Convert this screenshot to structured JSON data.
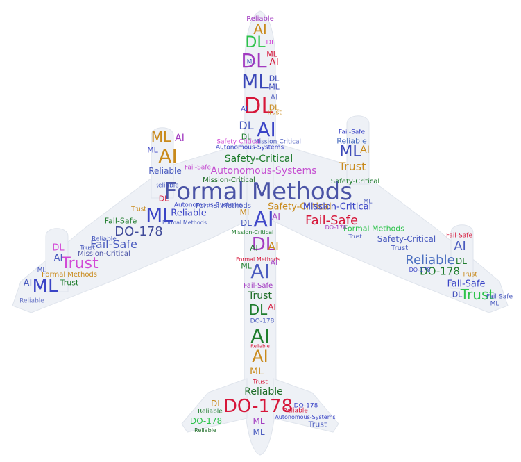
{
  "cloud": {
    "words": [
      {
        "text": "Formal Methods",
        "color": "#4b54a6"
      },
      {
        "text": "AI",
        "color": "#c98a1b"
      },
      {
        "text": "DL",
        "color": "#2cc34a"
      },
      {
        "text": "DL",
        "color": "#a23ac0"
      },
      {
        "text": "ML",
        "color": "#3a47b8"
      },
      {
        "text": "DL",
        "color": "#d6173a"
      },
      {
        "text": "AI",
        "color": "#3a44c6"
      },
      {
        "text": "Safety-Critical",
        "color": "#1e7c2c"
      },
      {
        "text": "Autonomous-Systems",
        "color": "#c54fd1"
      },
      {
        "text": "Mission-Critical",
        "color": "#1e6d27"
      },
      {
        "text": "AI",
        "color": "#3f47c8"
      },
      {
        "text": "AI",
        "color": "#d6173a"
      },
      {
        "text": "AI",
        "color": "#4a5bbf"
      },
      {
        "text": "AI",
        "color": "#1e7c2c"
      },
      {
        "text": "DL",
        "color": "#1e7c2c"
      },
      {
        "text": "AI",
        "color": "#c98a1b"
      },
      {
        "text": "ML",
        "color": "#3a47b8"
      },
      {
        "text": "AI",
        "color": "#c98a1b"
      },
      {
        "text": "ML",
        "color": "#c98a1b"
      },
      {
        "text": "ML",
        "color": "#3a44c6"
      },
      {
        "text": "DO-178",
        "color": "#3f4a99"
      },
      {
        "text": "Fail-Safe",
        "color": "#4a5bbf"
      },
      {
        "text": "Trust",
        "color": "#d249d6"
      },
      {
        "text": "ML",
        "color": "#3a44c6"
      },
      {
        "text": "Reliable",
        "color": "#3a44c6"
      },
      {
        "text": "DO-178",
        "color": "#1e6d27"
      },
      {
        "text": "Fail-Safe",
        "color": "#d6173a"
      },
      {
        "text": "Mission-Critical",
        "color": "#4b54a6"
      },
      {
        "text": "Formal Methods",
        "color": "#2cc34a"
      },
      {
        "text": "Safety-Critical",
        "color": "#4a5bbf"
      },
      {
        "text": "Reliable",
        "color": "#4b6fc0"
      },
      {
        "text": "DO-178",
        "color": "#1e7c2c"
      },
      {
        "text": "Trust",
        "color": "#2cc34a"
      },
      {
        "text": "Fail-Safe",
        "color": "#3a44c6"
      },
      {
        "text": "Trust",
        "color": "#1e7c2c"
      },
      {
        "text": "AI",
        "color": "#4a5bbf"
      },
      {
        "text": "ML",
        "color": "#a23ac0"
      },
      {
        "text": "Trust",
        "color": "#c98a1b"
      },
      {
        "text": "Reliable",
        "color": "#6b78c8"
      },
      {
        "text": "DL",
        "color": "#4a5bbf"
      },
      {
        "text": "DO-178",
        "color": "#d6173a"
      },
      {
        "text": "Reliable",
        "color": "#1e7c2c"
      },
      {
        "text": "DO-178",
        "color": "#2cc34a"
      },
      {
        "text": "DL",
        "color": "#c98a1b"
      },
      {
        "text": "ML",
        "color": "#a23ac0"
      },
      {
        "text": "ML",
        "color": "#4a5bbf"
      },
      {
        "text": "Trust",
        "color": "#4a5bbf"
      },
      {
        "text": "Mission-Critical",
        "color": "#3a44c6"
      },
      {
        "text": "Trust",
        "color": "#c98a1b"
      },
      {
        "text": "Trust",
        "color": "#1e6d27"
      },
      {
        "text": "Formal Methods",
        "color": "#c98a1b"
      },
      {
        "text": "Reliable",
        "color": "#4a5bbf"
      },
      {
        "text": "DL",
        "color": "#3a47b8"
      },
      {
        "text": "AI",
        "color": "#6b78c8"
      },
      {
        "text": "DL",
        "color": "#c98a1b"
      },
      {
        "text": "DL",
        "color": "#d249d6"
      },
      {
        "text": "DL",
        "color": "#a23ac0"
      },
      {
        "text": "AI",
        "color": "#d6173a"
      },
      {
        "text": "AI",
        "color": "#3f47c8"
      },
      {
        "text": "AI",
        "color": "#c98a1b"
      },
      {
        "text": "AI",
        "color": "#a23ac0"
      },
      {
        "text": "ML",
        "color": "#1e7c2c"
      },
      {
        "text": "ML",
        "color": "#c98a1b"
      },
      {
        "text": "Formal Methods",
        "color": "#d6173a"
      },
      {
        "text": "Fail-Safe",
        "color": "#c54fd1"
      },
      {
        "text": "DO-178",
        "color": "#4a5bbf"
      },
      {
        "text": "Mission-Critical",
        "color": "#4a5bbf"
      },
      {
        "text": "Autonomous-Systems",
        "color": "#3a44c6"
      },
      {
        "text": "Safety-Critical",
        "color": "#d249d6"
      },
      {
        "text": "Fail-Safe",
        "color": "#1e7c2c"
      },
      {
        "text": "Reliable",
        "color": "#4a5bbf"
      },
      {
        "text": "DL",
        "color": "#d6173a"
      },
      {
        "text": "ML",
        "color": "#c98a1b"
      },
      {
        "text": "DL",
        "color": "#4a5bbf"
      },
      {
        "text": "DL",
        "color": "#d6173a"
      },
      {
        "text": "AI",
        "color": "#4a5bbf"
      },
      {
        "text": "AI",
        "color": "#d6173a"
      },
      {
        "text": "Trust",
        "color": "#c98a1b"
      },
      {
        "text": "ML",
        "color": "#c98a1b"
      },
      {
        "text": "ML",
        "color": "#4a5bbf"
      },
      {
        "text": "AI",
        "color": "#4a5bbf"
      },
      {
        "text": "AI",
        "color": "#a23ac0"
      },
      {
        "text": "DL",
        "color": "#1e7c2c"
      },
      {
        "text": "DL",
        "color": "#4a5bbf"
      },
      {
        "text": "Trust",
        "color": "#c98a1b"
      },
      {
        "text": "ML",
        "color": "#d6173a"
      },
      {
        "text": "ML",
        "color": "#4a5bbf"
      },
      {
        "text": "Reliable",
        "color": "#1e6d27"
      },
      {
        "text": "Autonomous-Systems",
        "color": "#4a5bbf"
      },
      {
        "text": "Fail-Safe",
        "color": "#a23ac0"
      },
      {
        "text": "Safety-Critical",
        "color": "#d6173a"
      },
      {
        "text": "Trust",
        "color": "#4a5bbf"
      },
      {
        "text": "DO-178",
        "color": "#c98a1b"
      },
      {
        "text": "DO-178",
        "color": "#3a44c6"
      },
      {
        "text": "Reliable",
        "color": "#a23ac0"
      },
      {
        "text": "Formal Methods",
        "color": "#4a5bbf"
      },
      {
        "text": "Fail-Safe",
        "color": "#3f47c8"
      },
      {
        "text": "Trust",
        "color": "#4a5bbf"
      },
      {
        "text": "Reliable",
        "color": "#d6173a"
      },
      {
        "text": "Reliable",
        "color": "#1e6d27"
      },
      {
        "text": "Trust",
        "color": "#4a5bbf"
      },
      {
        "text": "Fail-Safe",
        "color": "#d6173a"
      },
      {
        "text": "DO-178",
        "color": "#a23ac0"
      },
      {
        "text": "Formal Methods",
        "color": "#2cc34a"
      },
      {
        "text": "Trust",
        "color": "#4a5bbf"
      },
      {
        "text": "Reliable",
        "color": "#3a44c6"
      },
      {
        "text": "DL",
        "color": "#3a44c6"
      },
      {
        "text": "Safety-Critical",
        "color": "#c98a1b"
      },
      {
        "text": "Reliable",
        "color": "#d6173a"
      },
      {
        "text": "Mission-Critical",
        "color": "#4a5bbf"
      },
      {
        "text": "DL",
        "color": "#3a44c6"
      },
      {
        "text": "AI",
        "color": "#d6173a"
      },
      {
        "text": "Safety-Critical",
        "color": "#1e7c2c"
      },
      {
        "text": "Mission-Critical",
        "color": "#1e7c2c"
      },
      {
        "text": "DO-178",
        "color": "#4a5bbf"
      },
      {
        "text": "Reliable",
        "color": "#4a5bbf"
      },
      {
        "text": "Fail-Safe",
        "color": "#a23ac0"
      },
      {
        "text": "Autonomous-Systems",
        "color": "#3a44c6"
      },
      {
        "text": "Safety-Critical",
        "color": "#d6173a"
      },
      {
        "text": "Formal Methods",
        "color": "#4a5bbf"
      },
      {
        "text": "Fail-Safe",
        "color": "#4a5bbf"
      },
      {
        "text": "Trust",
        "color": "#c98a1b"
      },
      {
        "text": "DL",
        "color": "#d249d6"
      },
      {
        "text": "Mission-Critical",
        "color": "#1e6d27"
      },
      {
        "text": "Fail-Safe",
        "color": "#4a5bbf"
      },
      {
        "text": "Trust",
        "color": "#d6173a"
      },
      {
        "text": "Reliable",
        "color": "#c98a1b"
      },
      {
        "text": "Reliable",
        "color": "#4a5bbf"
      },
      {
        "text": "DO-178",
        "color": "#3a44c6"
      },
      {
        "text": "ML",
        "color": "#d6173a"
      },
      {
        "text": "ML",
        "color": "#4a5bbf"
      },
      {
        "text": "Fail-Safe",
        "color": "#4a5bbf"
      },
      {
        "text": "Autonomous-Systems",
        "color": "#a23ac0"
      },
      {
        "text": "Mission-Critical",
        "color": "#4a5bbf"
      },
      {
        "text": "DO-178",
        "color": "#3a44c6"
      },
      {
        "text": "DL",
        "color": "#d6173a"
      },
      {
        "text": "Reliable",
        "color": "#1e7c2c"
      },
      {
        "text": "AI",
        "color": "#d6173a"
      },
      {
        "text": "Safety-Critical",
        "color": "#c54fd1"
      },
      {
        "text": "Fail-Safe",
        "color": "#4a5bbf"
      },
      {
        "text": "Trust",
        "color": "#4a5bbf"
      },
      {
        "text": "Mission-Critical",
        "color": "#1e6d27"
      },
      {
        "text": "Safety-Critical",
        "color": "#a23ac0"
      },
      {
        "text": "Formal Methods",
        "color": "#4a5bbf"
      },
      {
        "text": "ML",
        "color": "#4a5bbf"
      },
      {
        "text": "Reliable",
        "color": "#a23ac0"
      },
      {
        "text": "Trust",
        "color": "#4a5bbf"
      }
    ],
    "colors": {
      "silhouette_fill": "#eef1f6",
      "silhouette_stroke": "#dfe4ec",
      "background": "#ffffff"
    }
  }
}
